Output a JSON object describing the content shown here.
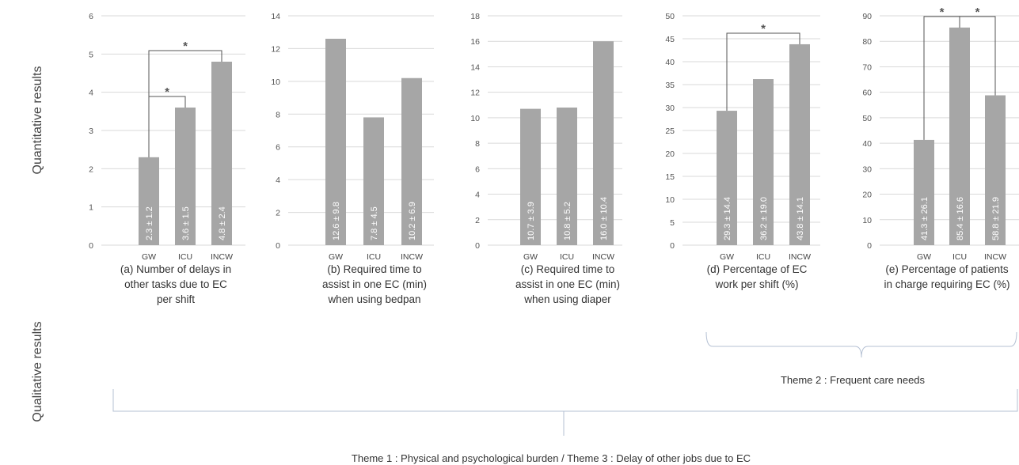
{
  "row_labels": {
    "quantitative": "Quantitative results",
    "qualitative": "Qualitative results"
  },
  "colors": {
    "bar": "#a6a6a6",
    "grid": "#d9d9d9",
    "bracket": "#b4c0d3",
    "sig": "#555555"
  },
  "chart_data": [
    {
      "type": "bar",
      "categories": [
        "GW",
        "ICU",
        "INCW"
      ],
      "values": [
        2.3,
        3.6,
        4.8
      ],
      "data_labels": [
        "2.3 ± 1.2",
        "3.6 ± 1.5",
        "4.8 ± 2.4"
      ],
      "yticks": [
        "0",
        "1",
        "2",
        "3",
        "4",
        "5",
        "6"
      ],
      "ylim": [
        0,
        6
      ],
      "caption": [
        "(a) Number of delays in",
        "other tasks due to EC",
        "per shift"
      ],
      "significance": [
        {
          "from": 0,
          "to": 2,
          "label": "*"
        },
        {
          "from": 0,
          "to": 1,
          "label": "*"
        }
      ]
    },
    {
      "type": "bar",
      "categories": [
        "GW",
        "ICU",
        "INCW"
      ],
      "values": [
        12.6,
        7.8,
        10.2
      ],
      "data_labels": [
        "12.6 ± 9.8",
        "7.8 ± 4.5",
        "10.2 ± 6.9"
      ],
      "yticks": [
        "0",
        "2",
        "4",
        "6",
        "8",
        "10",
        "12",
        "14"
      ],
      "ylim": [
        0,
        14
      ],
      "caption": [
        "(b) Required time to",
        "assist in one EC (min)",
        "when using bedpan"
      ],
      "significance": []
    },
    {
      "type": "bar",
      "categories": [
        "GW",
        "ICU",
        "INCW"
      ],
      "values": [
        10.7,
        10.8,
        16.0
      ],
      "data_labels": [
        "10.7 ± 3.9",
        "10.8 ± 5.2",
        "16.0 ± 10.4"
      ],
      "yticks": [
        "0",
        "2",
        "4",
        "6",
        "8",
        "10",
        "12",
        "14",
        "16",
        "18"
      ],
      "ylim": [
        0,
        18
      ],
      "caption": [
        "(c) Required time to",
        "assist in one EC (min)",
        "when using diaper"
      ],
      "significance": []
    },
    {
      "type": "bar",
      "categories": [
        "GW",
        "ICU",
        "INCW"
      ],
      "values": [
        29.3,
        36.2,
        43.8
      ],
      "data_labels": [
        "29.3 ± 14.4",
        "36.2 ± 19.0",
        "43.8 ± 14.1"
      ],
      "yticks": [
        "0",
        "5",
        "10",
        "15",
        "20",
        "25",
        "30",
        "35",
        "40",
        "45",
        "50"
      ],
      "ylim": [
        0,
        50
      ],
      "caption": [
        "(d) Percentage of EC",
        "work per shift (%)"
      ],
      "significance": [
        {
          "from": 0,
          "to": 2,
          "label": "*"
        }
      ]
    },
    {
      "type": "bar",
      "categories": [
        "GW",
        "ICU",
        "INCW"
      ],
      "values": [
        41.3,
        85.4,
        58.8
      ],
      "data_labels": [
        "41.3 ± 26.1",
        "85.4 ± 16.6",
        "58.8 ± 21.9"
      ],
      "yticks": [
        "0",
        "10",
        "20",
        "30",
        "40",
        "50",
        "60",
        "70",
        "80",
        "90"
      ],
      "ylim": [
        0,
        90
      ],
      "caption": [
        "(e) Percentage of patients",
        "in charge requiring EC (%)"
      ],
      "significance": [
        {
          "from": 0,
          "to": 1,
          "label": "*"
        },
        {
          "from": 1,
          "to": 2,
          "label": "*"
        }
      ]
    }
  ],
  "themes": {
    "theme2": "Theme 2 : Frequent care needs",
    "theme1_3": "Theme 1 : Physical and psychological burden /  Theme 3 : Delay of other jobs due to EC"
  }
}
